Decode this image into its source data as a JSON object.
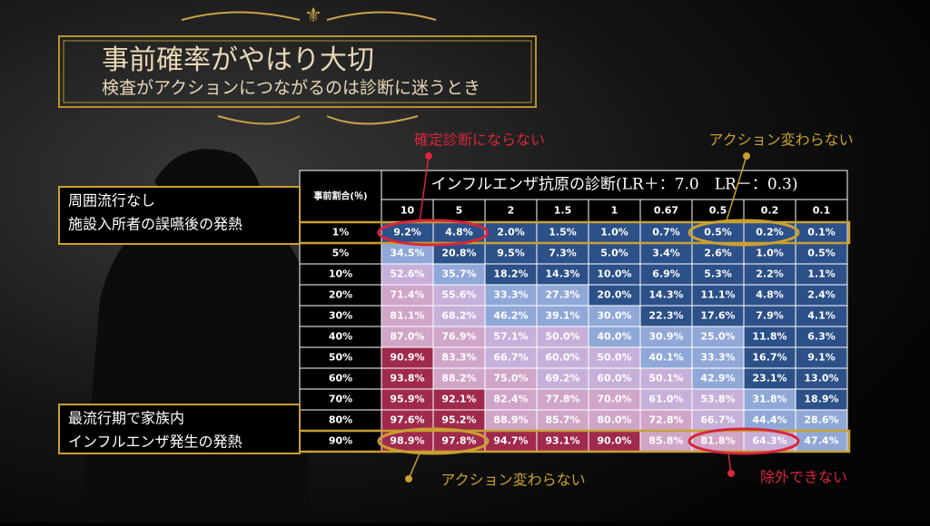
{
  "header": {
    "title": "事前確率がやはり大切",
    "subtitle": "検査がアクションにつながるのは診断に迷うとき"
  },
  "annotations": {
    "top_left": "確定診断にならない",
    "top_right": "アクション変わらない",
    "bottom_left": "アクション変わらない",
    "bottom_right": "除外できない"
  },
  "side_labels": {
    "low": [
      "周囲流行なし",
      "施設入所者の誤嚥後の発熱"
    ],
    "high": [
      "最流行期で家族内",
      "インフルエンザ発生の発熱"
    ]
  },
  "table": {
    "corner": "事前割合(％)",
    "title": "インフルエンザ抗原の診断(LR＋：7.0　LR－：0.3)",
    "columns": [
      "10",
      "5",
      "2",
      "1.5",
      "1",
      "0.67",
      "0.5",
      "0.2",
      "0.1"
    ],
    "rows": [
      {
        "label": "1%",
        "values": [
          "9.2%",
          "4.8%",
          "2.0%",
          "1.5%",
          "1.0%",
          "0.7%",
          "0.5%",
          "0.2%",
          "0.1%"
        ]
      },
      {
        "label": "5%",
        "values": [
          "34.5%",
          "20.8%",
          "9.5%",
          "7.3%",
          "5.0%",
          "3.4%",
          "2.6%",
          "1.0%",
          "0.5%"
        ]
      },
      {
        "label": "10%",
        "values": [
          "52.6%",
          "35.7%",
          "18.2%",
          "14.3%",
          "10.0%",
          "6.9%",
          "5.3%",
          "2.2%",
          "1.1%"
        ]
      },
      {
        "label": "20%",
        "values": [
          "71.4%",
          "55.6%",
          "33.3%",
          "27.3%",
          "20.0%",
          "14.3%",
          "11.1%",
          "4.8%",
          "2.4%"
        ]
      },
      {
        "label": "30%",
        "values": [
          "81.1%",
          "68.2%",
          "46.2%",
          "39.1%",
          "30.0%",
          "22.3%",
          "17.6%",
          "7.9%",
          "4.1%"
        ]
      },
      {
        "label": "40%",
        "values": [
          "87.0%",
          "76.9%",
          "57.1%",
          "50.0%",
          "40.0%",
          "30.9%",
          "25.0%",
          "11.8%",
          "6.3%"
        ]
      },
      {
        "label": "50%",
        "values": [
          "90.9%",
          "83.3%",
          "66.7%",
          "60.0%",
          "50.0%",
          "40.1%",
          "33.3%",
          "16.7%",
          "9.1%"
        ]
      },
      {
        "label": "60%",
        "values": [
          "93.8%",
          "88.2%",
          "75.0%",
          "69.2%",
          "60.0%",
          "50.1%",
          "42.9%",
          "23.1%",
          "13.0%"
        ]
      },
      {
        "label": "70%",
        "values": [
          "95.9%",
          "92.1%",
          "82.4%",
          "77.8%",
          "70.0%",
          "61.0%",
          "53.8%",
          "31.8%",
          "18.9%"
        ]
      },
      {
        "label": "80%",
        "values": [
          "97.6%",
          "95.2%",
          "88.9%",
          "85.7%",
          "80.0%",
          "72.8%",
          "66.7%",
          "44.4%",
          "28.6%"
        ]
      },
      {
        "label": "90%",
        "values": [
          "98.9%",
          "97.8%",
          "94.7%",
          "93.1%",
          "90.0%",
          "85.8%",
          "81.8%",
          "64.3%",
          "47.4%"
        ]
      }
    ]
  }
}
